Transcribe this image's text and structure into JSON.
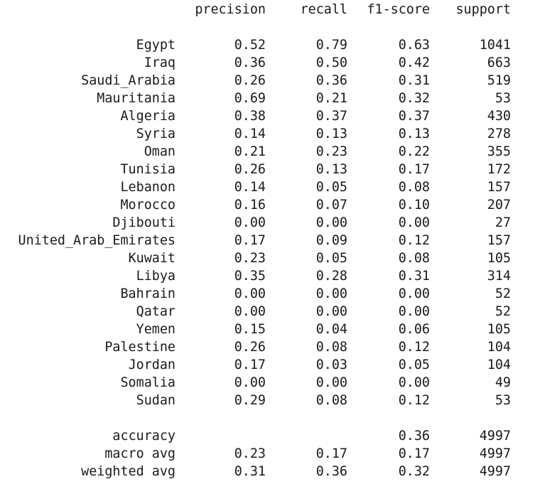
{
  "headers": {
    "precision": "precision",
    "recall": "recall",
    "f1": "f1-score",
    "support": "support"
  },
  "rows": [
    {
      "label": "Egypt",
      "precision": "0.52",
      "recall": "0.79",
      "f1": "0.63",
      "support": "1041"
    },
    {
      "label": "Iraq",
      "precision": "0.36",
      "recall": "0.50",
      "f1": "0.42",
      "support": "663"
    },
    {
      "label": "Saudi_Arabia",
      "precision": "0.26",
      "recall": "0.36",
      "f1": "0.31",
      "support": "519"
    },
    {
      "label": "Mauritania",
      "precision": "0.69",
      "recall": "0.21",
      "f1": "0.32",
      "support": "53"
    },
    {
      "label": "Algeria",
      "precision": "0.38",
      "recall": "0.37",
      "f1": "0.37",
      "support": "430"
    },
    {
      "label": "Syria",
      "precision": "0.14",
      "recall": "0.13",
      "f1": "0.13",
      "support": "278"
    },
    {
      "label": "Oman",
      "precision": "0.21",
      "recall": "0.23",
      "f1": "0.22",
      "support": "355"
    },
    {
      "label": "Tunisia",
      "precision": "0.26",
      "recall": "0.13",
      "f1": "0.17",
      "support": "172"
    },
    {
      "label": "Lebanon",
      "precision": "0.14",
      "recall": "0.05",
      "f1": "0.08",
      "support": "157"
    },
    {
      "label": "Morocco",
      "precision": "0.16",
      "recall": "0.07",
      "f1": "0.10",
      "support": "207"
    },
    {
      "label": "Djibouti",
      "precision": "0.00",
      "recall": "0.00",
      "f1": "0.00",
      "support": "27"
    },
    {
      "label": "United_Arab_Emirates",
      "precision": "0.17",
      "recall": "0.09",
      "f1": "0.12",
      "support": "157"
    },
    {
      "label": "Kuwait",
      "precision": "0.23",
      "recall": "0.05",
      "f1": "0.08",
      "support": "105"
    },
    {
      "label": "Libya",
      "precision": "0.35",
      "recall": "0.28",
      "f1": "0.31",
      "support": "314"
    },
    {
      "label": "Bahrain",
      "precision": "0.00",
      "recall": "0.00",
      "f1": "0.00",
      "support": "52"
    },
    {
      "label": "Qatar",
      "precision": "0.00",
      "recall": "0.00",
      "f1": "0.00",
      "support": "52"
    },
    {
      "label": "Yemen",
      "precision": "0.15",
      "recall": "0.04",
      "f1": "0.06",
      "support": "105"
    },
    {
      "label": "Palestine",
      "precision": "0.26",
      "recall": "0.08",
      "f1": "0.12",
      "support": "104"
    },
    {
      "label": "Jordan",
      "precision": "0.17",
      "recall": "0.03",
      "f1": "0.05",
      "support": "104"
    },
    {
      "label": "Somalia",
      "precision": "0.00",
      "recall": "0.00",
      "f1": "0.00",
      "support": "49"
    },
    {
      "label": "Sudan",
      "precision": "0.29",
      "recall": "0.08",
      "f1": "0.12",
      "support": "53"
    }
  ],
  "summary": [
    {
      "label": "accuracy",
      "precision": "",
      "recall": "",
      "f1": "0.36",
      "support": "4997"
    },
    {
      "label": "macro avg",
      "precision": "0.23",
      "recall": "0.17",
      "f1": "0.17",
      "support": "4997"
    },
    {
      "label": "weighted avg",
      "precision": "0.31",
      "recall": "0.36",
      "f1": "0.32",
      "support": "4997"
    }
  ]
}
